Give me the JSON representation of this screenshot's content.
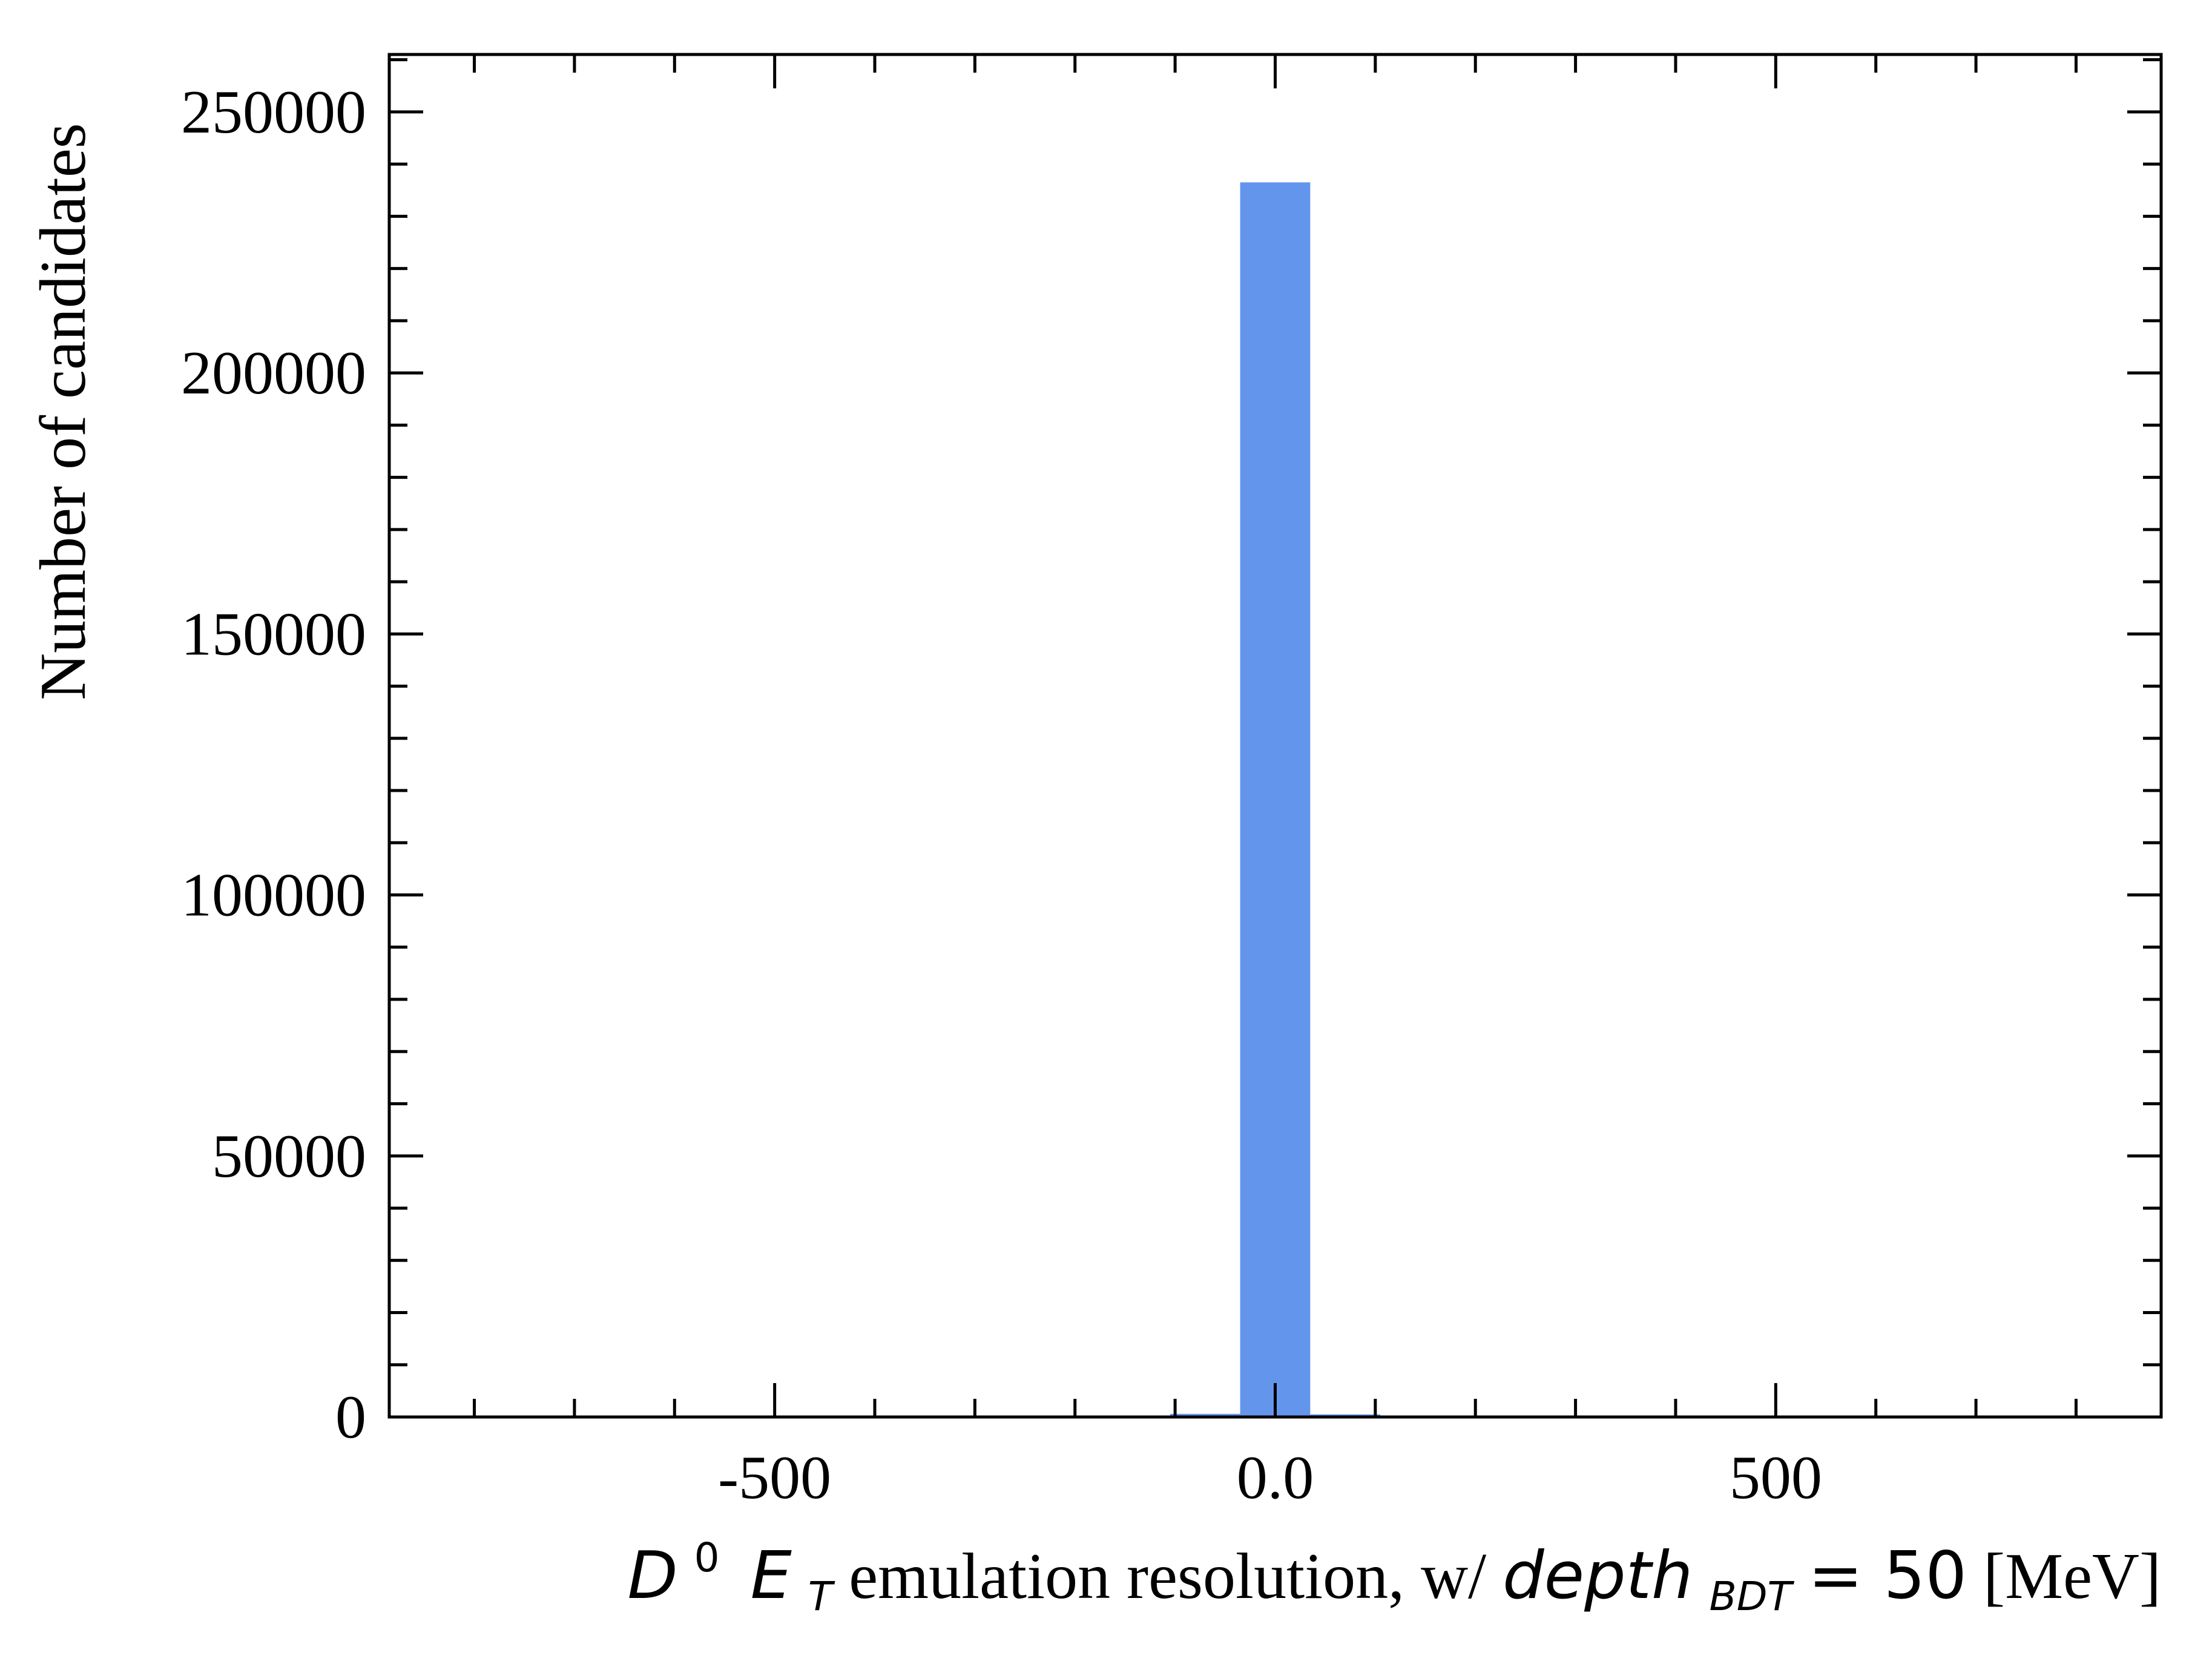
{
  "chart_data": {
    "type": "bar",
    "title": "",
    "xlabel": {
      "math_prefix": "D",
      "math_prefix_sup": "0",
      "math_e": "E",
      "math_e_sub": "T",
      "text1": " emulation resolution, w/ ",
      "math_depth": "depth",
      "math_depth_sub": "BDT",
      "math_eq": " = 50",
      "unit": " [MeV]"
    },
    "ylabel": "Number of candidates",
    "xlim": [
      -885,
      885
    ],
    "ylim": [
      0,
      261000
    ],
    "x_ticks": [
      {
        "value": -500,
        "label": "-500"
      },
      {
        "value": 0,
        "label": "0.0"
      },
      {
        "value": 500,
        "label": "500"
      }
    ],
    "y_ticks": [
      {
        "value": 0,
        "label": "0"
      },
      {
        "value": 50000,
        "label": "50000"
      },
      {
        "value": 100000,
        "label": "100000"
      },
      {
        "value": 150000,
        "label": "150000"
      },
      {
        "value": 200000,
        "label": "200000"
      },
      {
        "value": 250000,
        "label": "250000"
      }
    ],
    "x_minor_step": 100,
    "y_minor_step": 10000,
    "bar_color": "#6495ED",
    "bins": [
      {
        "x0": -175,
        "x1": -105,
        "value": 150
      },
      {
        "x0": -105,
        "x1": -35,
        "value": 600
      },
      {
        "x0": -35,
        "x1": 35,
        "value": 236500
      },
      {
        "x0": 35,
        "x1": 105,
        "value": 500
      }
    ]
  }
}
